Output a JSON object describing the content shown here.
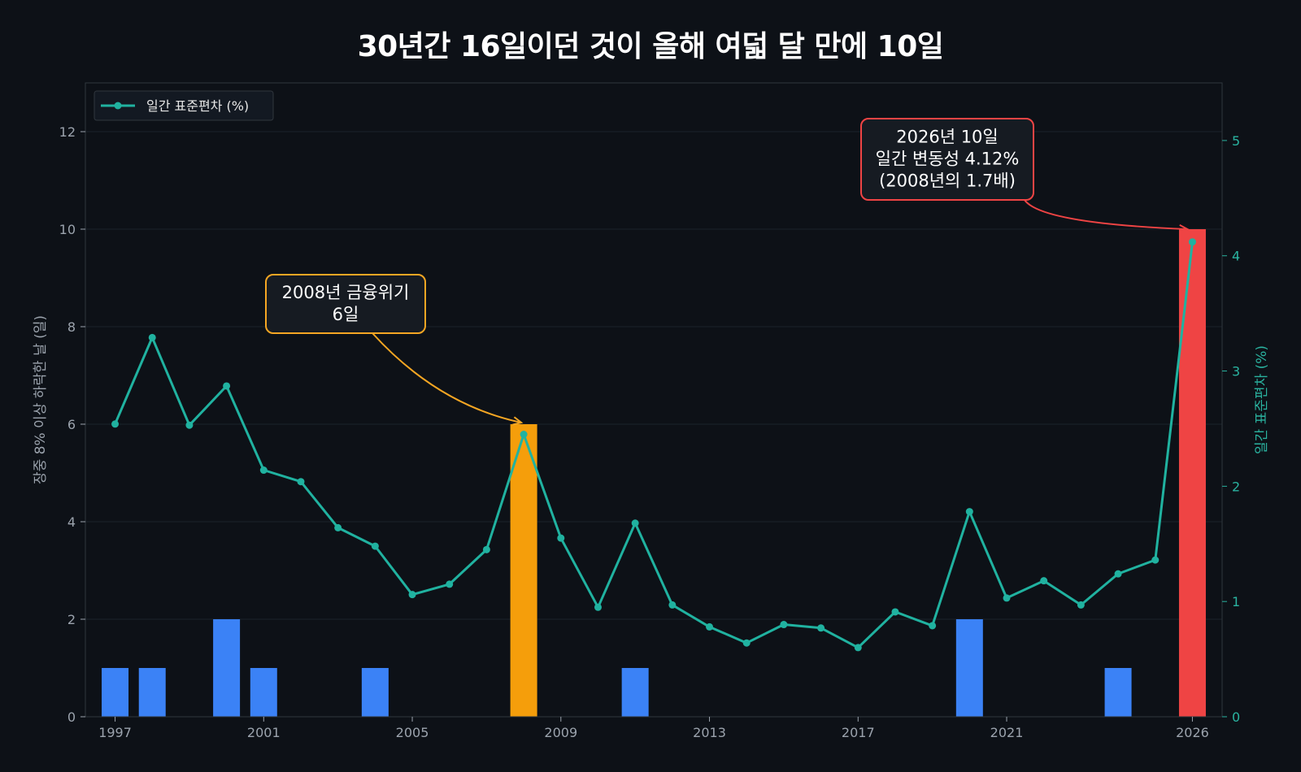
{
  "chart_data": {
    "type": "bar+line",
    "title": "30년간 16일이던 것이 올해 여덟 달 만에 10일",
    "ylabel_left": "장중 8% 이상 하락한 날 (일)",
    "ylabel_right": "일간 표준편차 (%)",
    "ylim_left": [
      0,
      13
    ],
    "ylim_right": [
      0,
      5.5
    ],
    "yticks_left": [
      0,
      2,
      4,
      6,
      8,
      10,
      12
    ],
    "yticks_right": [
      0,
      1,
      2,
      3,
      4,
      5
    ],
    "xlim": [
      1996.2,
      2026.8
    ],
    "xtick_labels": [
      "1997",
      "2001",
      "2005",
      "2009",
      "2013",
      "2017",
      "2021",
      "2026"
    ],
    "grid": true,
    "legend_position": "top-left",
    "legend_entries": [
      "일간 표준편차 (%)"
    ],
    "bar_series": {
      "name": "장중 8% 이상 하락한 날 (일)",
      "default_color": "#3b82f6",
      "points": [
        {
          "year": 1997,
          "value": 1
        },
        {
          "year": 1998,
          "value": 1
        },
        {
          "year": 2000,
          "value": 2
        },
        {
          "year": 2001,
          "value": 1
        },
        {
          "year": 2004,
          "value": 1
        },
        {
          "year": 2008,
          "value": 6,
          "color": "#f59e0b"
        },
        {
          "year": 2011,
          "value": 1
        },
        {
          "year": 2020,
          "value": 2
        },
        {
          "year": 2024,
          "value": 1
        },
        {
          "year": 2026,
          "value": 10,
          "color": "#ef4444"
        }
      ]
    },
    "line_series": {
      "name": "일간 표준편차 (%)",
      "color": "#20b2a0",
      "x": [
        1997,
        1998,
        1999,
        2000,
        2001,
        2002,
        2003,
        2004,
        2005,
        2006,
        2007,
        2008,
        2009,
        2010,
        2011,
        2012,
        2013,
        2014,
        2015,
        2016,
        2017,
        2018,
        2019,
        2020,
        2021,
        2022,
        2023,
        2024,
        2025,
        2026
      ],
      "y": [
        2.54,
        3.29,
        2.53,
        2.87,
        2.14,
        2.04,
        1.64,
        1.48,
        1.06,
        1.15,
        1.45,
        2.45,
        1.55,
        0.95,
        1.68,
        0.97,
        0.78,
        0.64,
        0.8,
        0.77,
        0.6,
        0.91,
        0.79,
        1.78,
        1.03,
        1.18,
        0.97,
        1.24,
        1.36,
        4.12
      ]
    },
    "annotations": [
      {
        "lines": [
          "2008년 금융위기",
          "6일"
        ],
        "target_year": 2008,
        "target_value": 6,
        "color": "#f5a623"
      },
      {
        "lines": [
          "2026년 10일",
          "일간 변동성 4.12%",
          "(2008년의 1.7배)"
        ],
        "target_year": 2026,
        "target_value": 10,
        "color": "#ef4444"
      }
    ]
  },
  "colors": {
    "background": "#0d1117",
    "plot_border": "#30363d",
    "grid": "#1c222b"
  }
}
